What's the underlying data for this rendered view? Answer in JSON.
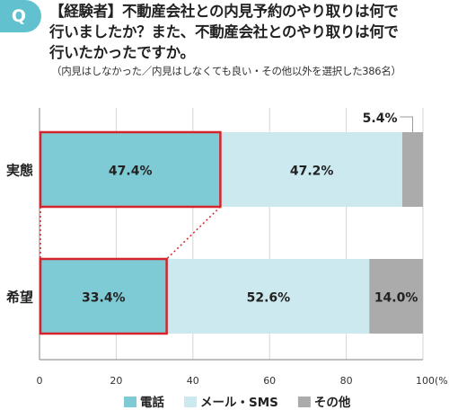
{
  "header": {
    "badge": "Q",
    "question_lines": [
      "【経験者】不動産会社との内見予約のやり取りは何で",
      "行いましたか？また、不動産会社とのやり取りは何で",
      "行いたかったですか。"
    ],
    "note": "（内見はしなかった／内見はしなくても良い・その他以外を選択した386名）"
  },
  "chart_data": {
    "type": "bar",
    "orientation": "horizontal",
    "stacked": true,
    "categories": [
      "実態",
      "希望"
    ],
    "series": [
      {
        "name": "電話",
        "values": [
          47.4,
          33.4
        ],
        "color": "#7ecbd6"
      },
      {
        "name": "メール・SMS",
        "values": [
          47.2,
          52.6
        ],
        "color": "#cbe9ee"
      },
      {
        "name": "その他",
        "values": [
          5.4,
          14.0
        ],
        "color": "#ababab"
      }
    ],
    "data_labels": [
      [
        "47.4%",
        "47.2%",
        "5.4%"
      ],
      [
        "33.4%",
        "52.6%",
        "14.0%"
      ]
    ],
    "xlim": [
      0,
      100
    ],
    "xticks": [
      "0",
      "20",
      "40",
      "60",
      "80",
      "100(%)"
    ],
    "highlight_color": "#d6242c",
    "legend_position": "bottom"
  }
}
